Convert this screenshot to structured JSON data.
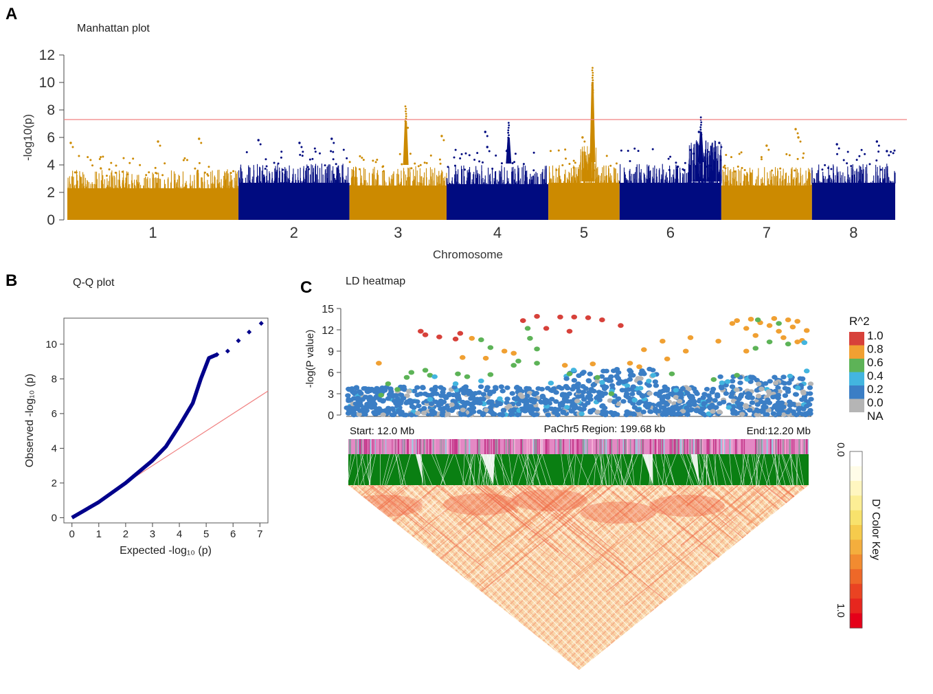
{
  "panels": {
    "a": {
      "letter": "A",
      "subtitle": "Manhattan plot"
    },
    "b": {
      "letter": "B",
      "subtitle": "Q-Q plot"
    },
    "c": {
      "letter": "C",
      "subtitle": "LD heatmap"
    }
  },
  "colors": {
    "odd_chrom": "#CC8A00",
    "even_chrom": "#000B80",
    "threshold": "#F08080",
    "qq_points": "#00008B"
  },
  "chart_data": [
    {
      "id": "manhattan",
      "type": "scatter",
      "title": "Manhattan plot",
      "xlabel": "Chromosome",
      "ylabel": "-log10(p)",
      "ylim": [
        0,
        12
      ],
      "yticks": [
        0,
        2,
        4,
        6,
        8,
        10,
        12
      ],
      "threshold": 7.3,
      "chromosomes": [
        {
          "label": "1",
          "span": 18.5,
          "baseline_max": 3.2,
          "peaks": [
            [
              0.02,
              5.6
            ],
            [
              0.53,
              5.7
            ],
            [
              0.77,
              5.9
            ]
          ]
        },
        {
          "label": "2",
          "span": 12.0,
          "baseline_max": 3.6,
          "peaks": [
            [
              0.18,
              5.8
            ],
            [
              0.55,
              5.6
            ],
            [
              0.84,
              5.9
            ]
          ]
        },
        {
          "label": "3",
          "span": 10.5,
          "baseline_max": 3.4,
          "peaks": [
            [
              0.58,
              8.4
            ],
            [
              0.58,
              7.0
            ],
            [
              0.95,
              6.1
            ]
          ]
        },
        {
          "label": "4",
          "span": 11.0,
          "baseline_max": 3.5,
          "peaks": [
            [
              0.38,
              6.4
            ],
            [
              0.61,
              7.2
            ],
            [
              0.4,
              5.3
            ]
          ]
        },
        {
          "label": "5",
          "span": 7.7,
          "baseline_max": 3.6,
          "peaks": [
            [
              0.62,
              11.2
            ],
            [
              0.62,
              10.3
            ],
            [
              0.48,
              6.0
            ]
          ]
        },
        {
          "label": "6",
          "span": 11.0,
          "baseline_max": 3.6,
          "peaks": [
            [
              0.8,
              7.6
            ],
            [
              0.78,
              6.4
            ],
            [
              0.98,
              5.6
            ]
          ]
        },
        {
          "label": "7",
          "span": 9.8,
          "baseline_max": 3.4,
          "peaks": [
            [
              0.5,
              5.4
            ],
            [
              0.82,
              6.6
            ],
            [
              0.85,
              6.0
            ]
          ]
        },
        {
          "label": "8",
          "span": 9.0,
          "baseline_max": 3.6,
          "peaks": [
            [
              0.3,
              5.5
            ],
            [
              0.78,
              5.7
            ],
            [
              0.9,
              5.0
            ]
          ]
        }
      ]
    },
    {
      "id": "qq",
      "type": "scatter",
      "title": "Q-Q plot",
      "xlabel": "Expected -log₁₀ (p)",
      "ylabel": "Observed -log₁₀ (p)",
      "xlim": [
        -0.3,
        7.3
      ],
      "ylim": [
        -0.3,
        11.5
      ],
      "xticks": [
        0,
        1,
        2,
        3,
        4,
        5,
        6,
        7
      ],
      "yticks": [
        0,
        2,
        4,
        6,
        8,
        10
      ],
      "curve": [
        [
          0,
          0
        ],
        [
          1,
          0.9
        ],
        [
          2,
          2.0
        ],
        [
          3,
          3.3
        ],
        [
          3.5,
          4.1
        ],
        [
          4,
          5.3
        ],
        [
          4.5,
          6.6
        ],
        [
          4.8,
          8.0
        ],
        [
          5.1,
          9.2
        ],
        [
          5.4,
          9.4
        ],
        [
          5.8,
          9.6
        ],
        [
          6.2,
          10.2
        ],
        [
          6.6,
          10.7
        ],
        [
          7.05,
          11.2
        ]
      ],
      "reference_line": [
        [
          0,
          0
        ],
        [
          7.3,
          7.3
        ]
      ]
    },
    {
      "id": "ld",
      "type": "scatter",
      "title": "LD heatmap",
      "ylabel": "-log(P value)",
      "ylim": [
        0,
        15
      ],
      "yticks": [
        0,
        3,
        6,
        9,
        12,
        15
      ],
      "region_start": "Start: 12.0 Mb",
      "region_label": "PaChr5 Region: 199.68 kb",
      "region_end": "End:12.20 Mb",
      "r2_legend": {
        "title": "R^2",
        "labels": [
          "1.0",
          "0.8",
          "0.6",
          "0.4",
          "0.2",
          "0.0",
          "NA"
        ],
        "colors": [
          "#D7413A",
          "#F0A032",
          "#5DB357",
          "#43B5DF",
          "#3B7EC5",
          "#B5B5B5"
        ]
      },
      "d_prime_key": {
        "title": "D' Color Key",
        "min_label": "0.0",
        "max_label": "1.0",
        "colors": [
          "#FFFFFF",
          "#FFFCE8",
          "#FFF6C0",
          "#FCEE95",
          "#F8E26C",
          "#F6CB4C",
          "#F4AE3D",
          "#F28B30",
          "#EE6828",
          "#EA4322",
          "#E7261E",
          "#E50019"
        ]
      },
      "highlight_points": [
        {
          "x": 0.41,
          "y": 13.9,
          "r2": 0.95
        },
        {
          "x": 0.46,
          "y": 13.8,
          "r2": 0.95
        },
        {
          "x": 0.49,
          "y": 13.8,
          "r2": 0.95
        },
        {
          "x": 0.52,
          "y": 13.7,
          "r2": 0.95
        },
        {
          "x": 0.55,
          "y": 13.4,
          "r2": 0.95
        },
        {
          "x": 0.43,
          "y": 12.2,
          "r2": 0.95
        },
        {
          "x": 0.48,
          "y": 11.8,
          "r2": 0.95
        },
        {
          "x": 0.38,
          "y": 13.3,
          "r2": 0.95
        },
        {
          "x": 0.59,
          "y": 12.6,
          "r2": 0.95
        },
        {
          "x": 0.16,
          "y": 11.8,
          "r2": 0.95
        },
        {
          "x": 0.17,
          "y": 11.3,
          "r2": 0.95
        },
        {
          "x": 0.2,
          "y": 11.0,
          "r2": 0.95
        },
        {
          "x": 0.245,
          "y": 11.5,
          "r2": 0.95
        },
        {
          "x": 0.235,
          "y": 10.7,
          "r2": 0.95
        },
        {
          "x": 0.84,
          "y": 13.3,
          "r2": 0.7
        },
        {
          "x": 0.87,
          "y": 13.5,
          "r2": 0.7
        },
        {
          "x": 0.89,
          "y": 13.0,
          "r2": 0.7
        },
        {
          "x": 0.92,
          "y": 13.6,
          "r2": 0.7
        },
        {
          "x": 0.95,
          "y": 13.4,
          "r2": 0.7
        },
        {
          "x": 0.97,
          "y": 13.2,
          "r2": 0.7
        },
        {
          "x": 0.86,
          "y": 12.2,
          "r2": 0.7
        },
        {
          "x": 0.91,
          "y": 12.6,
          "r2": 0.7
        },
        {
          "x": 0.93,
          "y": 11.8,
          "r2": 0.7
        },
        {
          "x": 0.96,
          "y": 12.4,
          "r2": 0.7
        },
        {
          "x": 0.99,
          "y": 11.9,
          "r2": 0.7
        },
        {
          "x": 0.88,
          "y": 11.2,
          "r2": 0.7
        },
        {
          "x": 0.94,
          "y": 10.9,
          "r2": 0.7
        },
        {
          "x": 0.98,
          "y": 10.5,
          "r2": 0.7
        },
        {
          "x": 0.83,
          "y": 12.9,
          "r2": 0.7
        },
        {
          "x": 0.27,
          "y": 10.8,
          "r2": 0.7
        },
        {
          "x": 0.3,
          "y": 8.0,
          "r2": 0.7
        },
        {
          "x": 0.34,
          "y": 9.0,
          "r2": 0.7
        },
        {
          "x": 0.36,
          "y": 8.7,
          "r2": 0.7
        },
        {
          "x": 0.68,
          "y": 10.4,
          "r2": 0.7
        },
        {
          "x": 0.74,
          "y": 10.9,
          "r2": 0.7
        },
        {
          "x": 0.8,
          "y": 10.4,
          "r2": 0.7
        },
        {
          "x": 0.64,
          "y": 9.2,
          "r2": 0.7
        },
        {
          "x": 0.73,
          "y": 9.0,
          "r2": 0.7
        },
        {
          "x": 0.61,
          "y": 7.3,
          "r2": 0.7
        },
        {
          "x": 0.69,
          "y": 7.9,
          "r2": 0.7
        },
        {
          "x": 0.07,
          "y": 7.3,
          "r2": 0.7
        },
        {
          "x": 0.25,
          "y": 8.1,
          "r2": 0.7
        },
        {
          "x": 0.47,
          "y": 7.0,
          "r2": 0.7
        },
        {
          "x": 0.53,
          "y": 7.2,
          "r2": 0.7
        },
        {
          "x": 0.86,
          "y": 9.0,
          "r2": 0.7
        },
        {
          "x": 0.97,
          "y": 10.3,
          "r2": 0.7
        },
        {
          "x": 0.63,
          "y": 6.8,
          "r2": 0.7
        },
        {
          "x": 0.29,
          "y": 10.6,
          "r2": 0.5
        },
        {
          "x": 0.31,
          "y": 9.5,
          "r2": 0.5
        },
        {
          "x": 0.39,
          "y": 12.2,
          "r2": 0.5
        },
        {
          "x": 0.395,
          "y": 10.8,
          "r2": 0.5
        },
        {
          "x": 0.41,
          "y": 9.3,
          "r2": 0.5
        },
        {
          "x": 0.37,
          "y": 7.6,
          "r2": 0.5
        },
        {
          "x": 0.14,
          "y": 6.0,
          "r2": 0.5
        },
        {
          "x": 0.17,
          "y": 6.3,
          "r2": 0.5
        },
        {
          "x": 0.18,
          "y": 5.6,
          "r2": 0.5
        },
        {
          "x": 0.13,
          "y": 5.3,
          "r2": 0.5
        },
        {
          "x": 0.09,
          "y": 4.4,
          "r2": 0.5
        },
        {
          "x": 0.11,
          "y": 3.6,
          "r2": 0.5
        },
        {
          "x": 0.075,
          "y": 2.8,
          "r2": 0.5
        },
        {
          "x": 0.24,
          "y": 5.8,
          "r2": 0.5
        },
        {
          "x": 0.26,
          "y": 5.4,
          "r2": 0.5
        },
        {
          "x": 0.31,
          "y": 5.7,
          "r2": 0.5
        },
        {
          "x": 0.36,
          "y": 7.0,
          "r2": 0.5
        },
        {
          "x": 0.41,
          "y": 7.3,
          "r2": 0.5
        },
        {
          "x": 0.48,
          "y": 5.8,
          "r2": 0.5
        },
        {
          "x": 0.54,
          "y": 5.3,
          "r2": 0.5
        },
        {
          "x": 0.57,
          "y": 3.0,
          "r2": 0.5
        },
        {
          "x": 0.7,
          "y": 5.8,
          "r2": 0.5
        },
        {
          "x": 0.79,
          "y": 5.0,
          "r2": 0.5
        },
        {
          "x": 0.84,
          "y": 5.6,
          "r2": 0.5
        },
        {
          "x": 0.88,
          "y": 9.4,
          "r2": 0.5
        },
        {
          "x": 0.91,
          "y": 10.3,
          "r2": 0.5
        },
        {
          "x": 0.95,
          "y": 10.0,
          "r2": 0.5
        },
        {
          "x": 0.885,
          "y": 13.4,
          "r2": 0.5
        },
        {
          "x": 0.93,
          "y": 12.9,
          "r2": 0.5
        },
        {
          "x": 0.19,
          "y": 5.4,
          "r2": 0.3
        },
        {
          "x": 0.235,
          "y": 4.4,
          "r2": 0.3
        },
        {
          "x": 0.29,
          "y": 4.8,
          "r2": 0.3
        },
        {
          "x": 0.44,
          "y": 4.5,
          "r2": 0.3
        },
        {
          "x": 0.55,
          "y": 4.6,
          "r2": 0.3
        },
        {
          "x": 0.66,
          "y": 5.6,
          "r2": 0.3
        },
        {
          "x": 0.82,
          "y": 4.7,
          "r2": 0.3
        },
        {
          "x": 0.99,
          "y": 6.2,
          "r2": 0.3
        },
        {
          "x": 0.985,
          "y": 10.2,
          "r2": 0.3
        },
        {
          "x": 0.18,
          "y": 2.2,
          "r2": 0.3
        },
        {
          "x": 0.33,
          "y": 2.3,
          "r2": 0.3
        },
        {
          "x": 0.62,
          "y": 2.1,
          "r2": 0.3
        }
      ]
    }
  ]
}
